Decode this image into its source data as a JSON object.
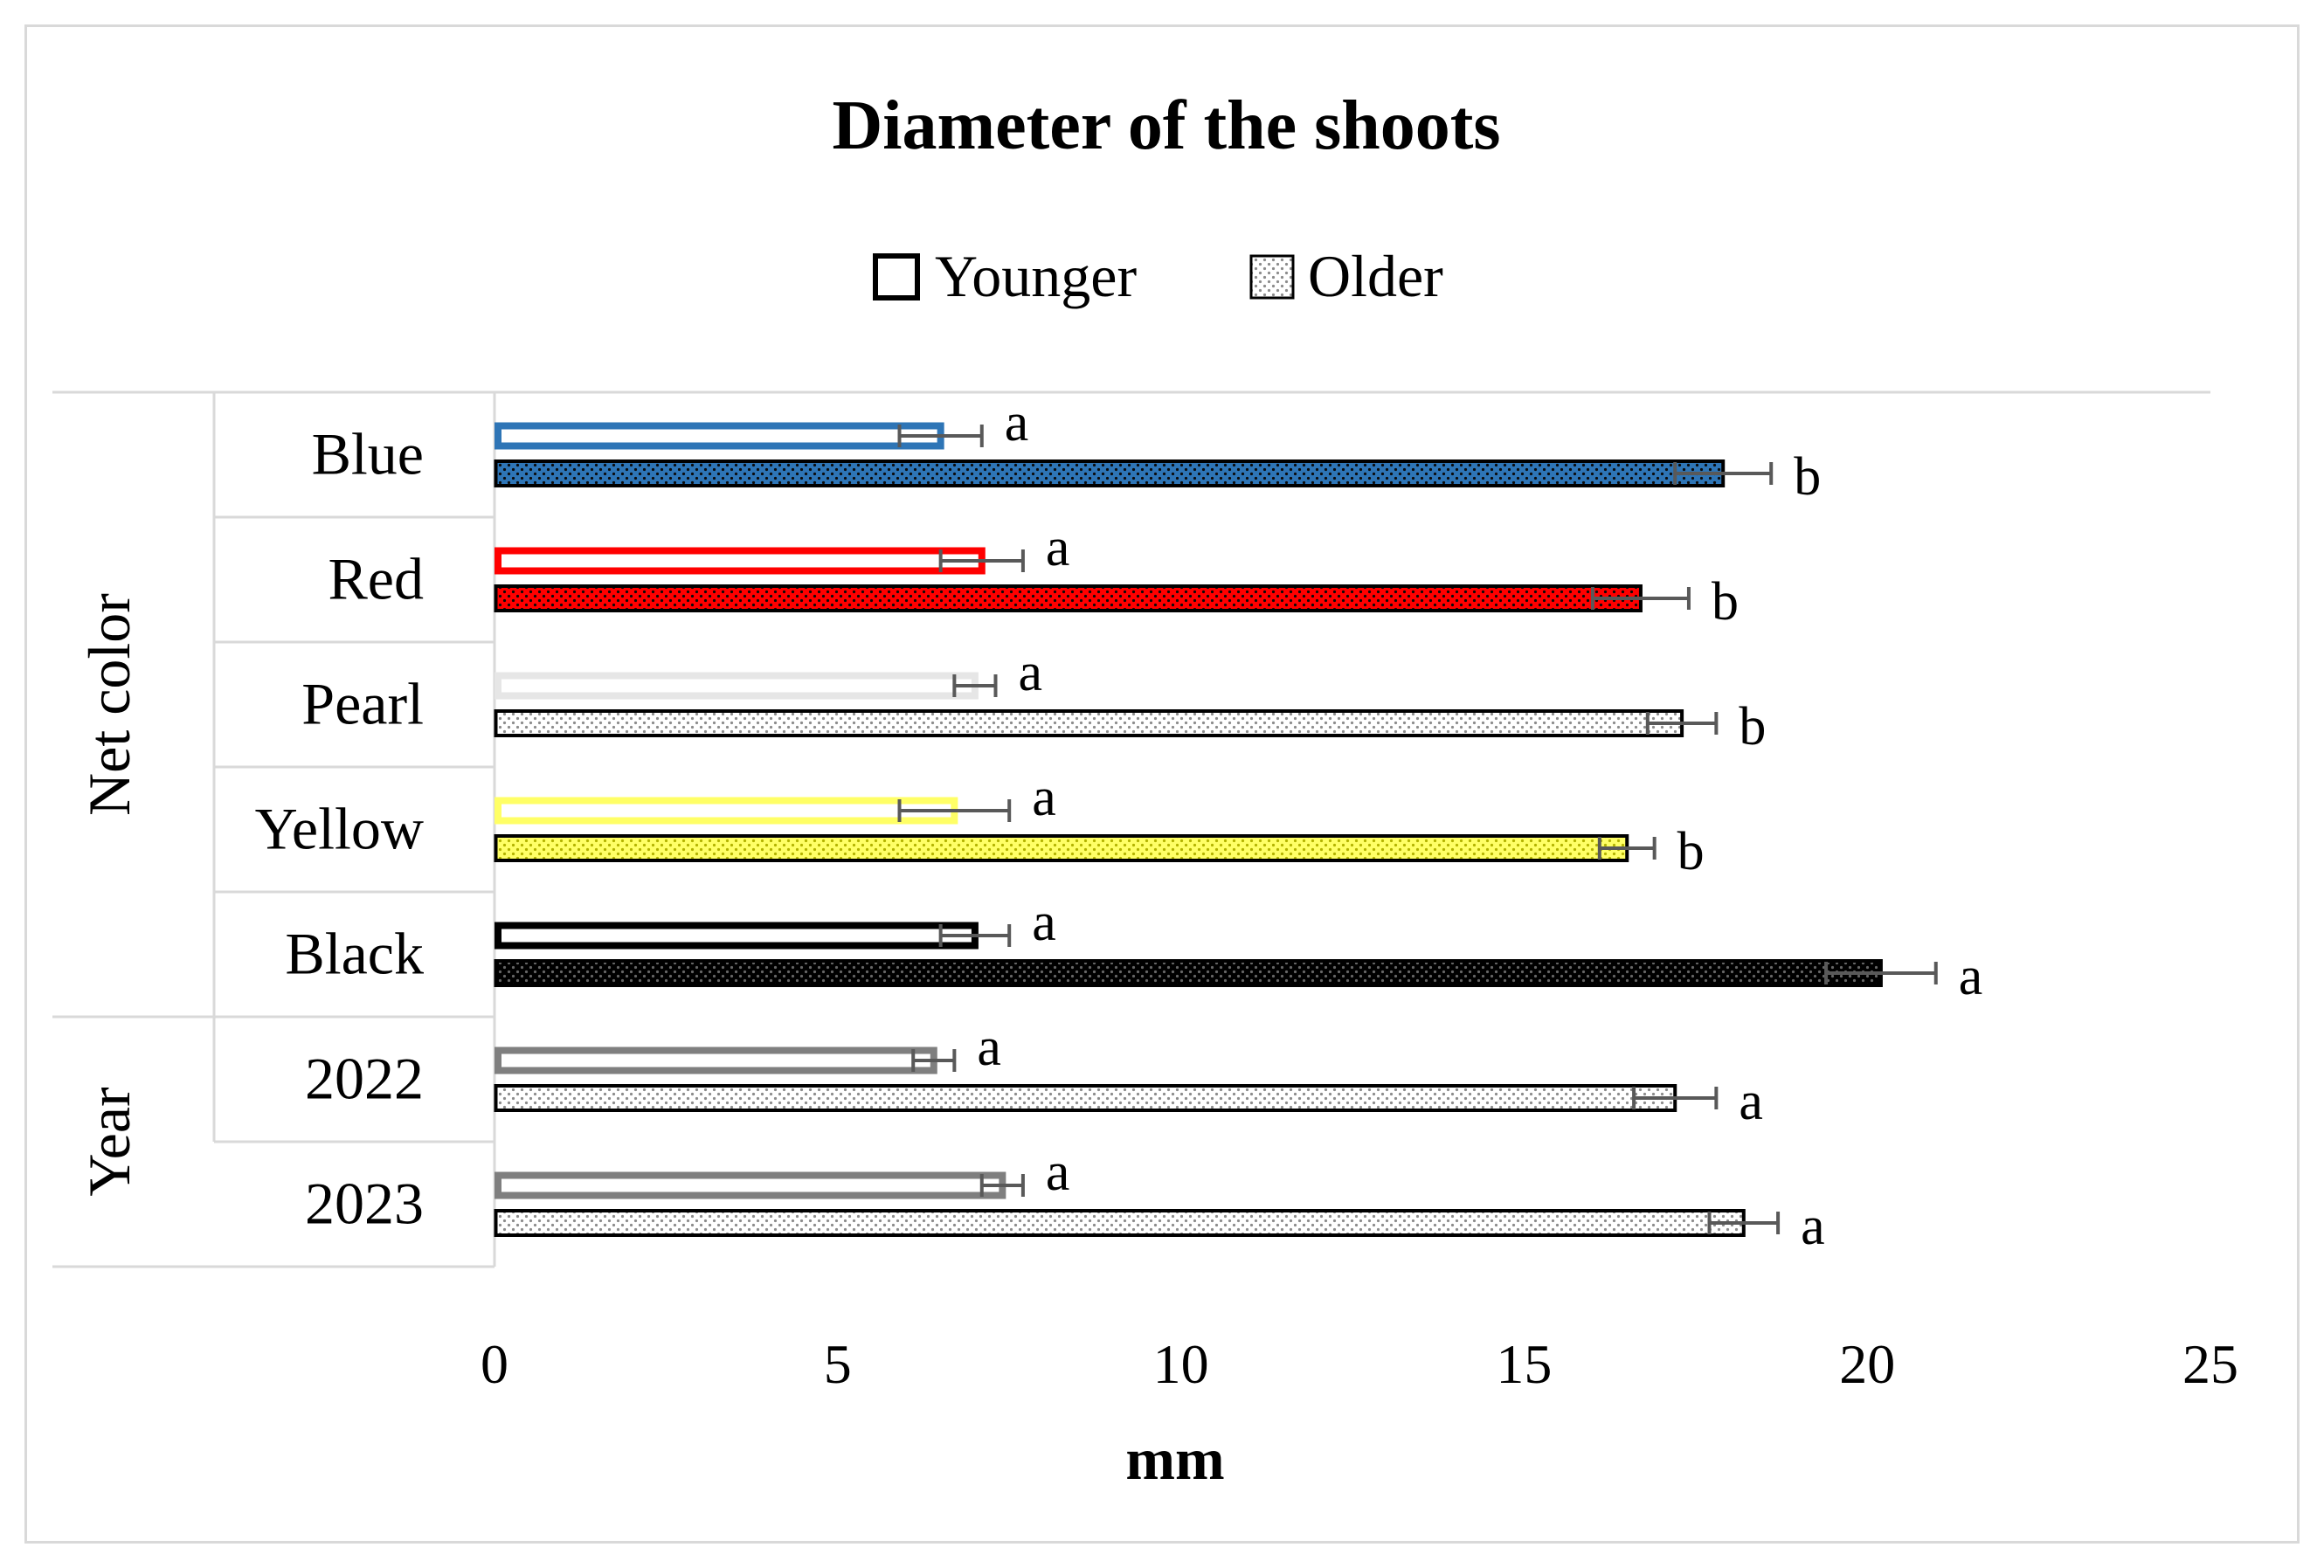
{
  "chart_data": {
    "type": "bar",
    "orientation": "horizontal",
    "title": "Diameter of the shoots",
    "xlabel": "mm",
    "xlim": [
      0,
      25
    ],
    "xticks": [
      0,
      5,
      10,
      15,
      20,
      25
    ],
    "grid": false,
    "legend_position": "top",
    "series": [
      {
        "name": "Younger",
        "pattern": "solid-outline"
      },
      {
        "name": "Older",
        "pattern": "dotted-fill"
      }
    ],
    "groups": [
      {
        "name": "Net color",
        "categories": [
          "Blue",
          "Red",
          "Pearl",
          "Yellow",
          "Black"
        ]
      },
      {
        "name": "Year",
        "categories": [
          "2022",
          "2023"
        ]
      }
    ],
    "rows": [
      {
        "category": "Blue",
        "color": "#2e75b6",
        "younger": {
          "value": 6.5,
          "error": 0.6,
          "letter": "a"
        },
        "older": {
          "value": 17.9,
          "error": 0.7,
          "letter": "b"
        }
      },
      {
        "category": "Red",
        "color": "#ff0000",
        "younger": {
          "value": 7.1,
          "error": 0.6,
          "letter": "a"
        },
        "older": {
          "value": 16.7,
          "error": 0.7,
          "letter": "b"
        }
      },
      {
        "category": "Pearl",
        "color": "#e6e6e6",
        "younger": {
          "value": 7.0,
          "error": 0.3,
          "letter": "a"
        },
        "older": {
          "value": 17.3,
          "error": 0.5,
          "letter": "b"
        }
      },
      {
        "category": "Yellow",
        "color": "#ffff66",
        "younger": {
          "value": 6.7,
          "error": 0.8,
          "letter": "a"
        },
        "older": {
          "value": 16.5,
          "error": 0.4,
          "letter": "b"
        }
      },
      {
        "category": "Black",
        "color": "#000000",
        "younger": {
          "value": 7.0,
          "error": 0.5,
          "letter": "a"
        },
        "older": {
          "value": 20.2,
          "error": 0.8,
          "letter": "a"
        }
      },
      {
        "category": "2022",
        "color": "#7f7f7f",
        "younger": {
          "value": 6.4,
          "error": 0.3,
          "letter": "a"
        },
        "older": {
          "value": 17.2,
          "error": 0.6,
          "letter": "a"
        }
      },
      {
        "category": "2023",
        "color": "#7f7f7f",
        "younger": {
          "value": 7.4,
          "error": 0.3,
          "letter": "a"
        },
        "older": {
          "value": 18.2,
          "error": 0.5,
          "letter": "a"
        }
      }
    ]
  }
}
